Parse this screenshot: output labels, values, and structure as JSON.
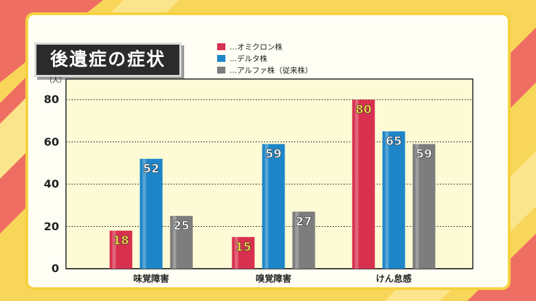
{
  "title": "後遺症の症状",
  "legend": [
    {
      "label": "…オミクロン株",
      "color": "#d8304f"
    },
    {
      "label": "…デルタ株",
      "color": "#1e86c8"
    },
    {
      "label": "…アルファ株（従来株）",
      "color": "#7d7d7d"
    }
  ],
  "chart_data": {
    "type": "bar",
    "categories": [
      "味覚障害",
      "嗅覚障害",
      "けん怠感"
    ],
    "series": [
      {
        "name": "…オミクロン株",
        "values": [
          18,
          15,
          80
        ],
        "color": "#d8304f"
      },
      {
        "name": "…デルタ株",
        "values": [
          52,
          59,
          65
        ],
        "color": "#1e86c8"
      },
      {
        "name": "…アルファ株（従来株）",
        "values": [
          25,
          27,
          59
        ],
        "color": "#7d7d7d"
      }
    ],
    "ylabel": "（人）",
    "ylim": [
      0,
      80
    ],
    "yticks": [
      0,
      20,
      40,
      60,
      80
    ],
    "grid": true,
    "legend_position": "top"
  }
}
